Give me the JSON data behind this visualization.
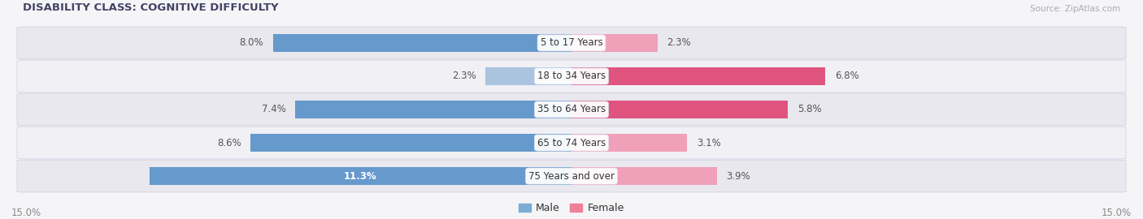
{
  "title": "DISABILITY CLASS: COGNITIVE DIFFICULTY",
  "source": "Source: ZipAtlas.com",
  "categories": [
    "5 to 17 Years",
    "18 to 34 Years",
    "35 to 64 Years",
    "65 to 74 Years",
    "75 Years and over"
  ],
  "male_values": [
    8.0,
    2.3,
    7.4,
    8.6,
    11.3
  ],
  "female_values": [
    2.3,
    6.8,
    5.8,
    3.1,
    3.9
  ],
  "max_val": 15.0,
  "male_color_strong": "#6699cc",
  "male_color_light": "#aac4e0",
  "female_color_strong": "#e05580",
  "female_color_light": "#f0a0b8",
  "row_bg_odd": "#e8e8ee",
  "row_bg_even": "#f0f0f5",
  "fig_bg": "#f5f5f8",
  "title_color": "#444466",
  "label_color": "#333333",
  "value_color": "#555555",
  "axis_label_color": "#888888",
  "source_color": "#aaaaaa",
  "legend_male_color": "#7bacd4",
  "legend_female_color": "#f08098",
  "value_fontsize": 8.5,
  "category_fontsize": 8.5,
  "title_fontsize": 9.5,
  "bar_height": 0.52,
  "male_threshold": 5.0
}
